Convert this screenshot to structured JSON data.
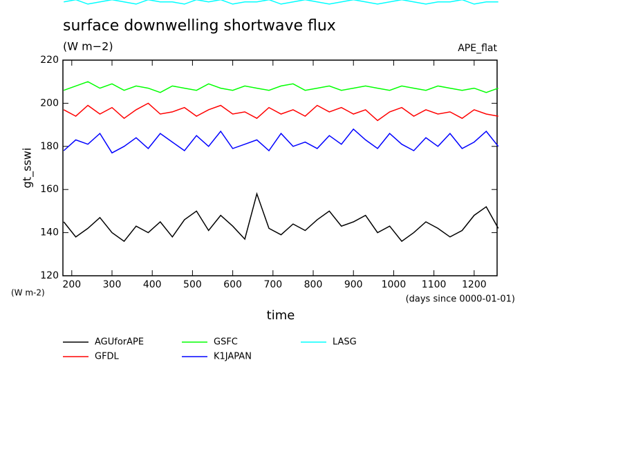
{
  "chart_data": {
    "type": "line",
    "title": "surface downwelling shortwave flux",
    "subtitle": "(W m−2)",
    "annotation": "APE_flat",
    "y_label": "gt_sswi",
    "y_unit": "(W m-2)",
    "x_unit": "(days since 0000-01-01)",
    "x_label": "time",
    "x": [
      180,
      210,
      240,
      270,
      300,
      330,
      360,
      390,
      420,
      450,
      480,
      510,
      540,
      570,
      600,
      630,
      660,
      690,
      720,
      750,
      780,
      810,
      840,
      870,
      900,
      930,
      960,
      990,
      1020,
      1050,
      1080,
      1110,
      1140,
      1170,
      1200,
      1230,
      1260
    ],
    "xlim": [
      178,
      1257
    ],
    "xticks": [
      200,
      300,
      400,
      500,
      600,
      700,
      800,
      900,
      1000,
      1100,
      1200
    ],
    "ylim": [
      120,
      220
    ],
    "yticks": [
      120,
      140,
      160,
      180,
      200,
      220
    ],
    "series": [
      {
        "name": "AGUforAPE",
        "color": "#000000",
        "values": [
          145,
          138,
          142,
          147,
          140,
          136,
          143,
          140,
          145,
          138,
          146,
          150,
          141,
          148,
          143,
          137,
          158,
          142,
          139,
          144,
          141,
          146,
          150,
          143,
          145,
          148,
          140,
          143,
          136,
          140,
          145,
          142,
          138,
          141,
          148,
          152,
          142
        ]
      },
      {
        "name": "GFDL",
        "color": "#ff0000",
        "values": [
          197,
          194,
          199,
          195,
          198,
          193,
          197,
          200,
          195,
          196,
          198,
          194,
          197,
          199,
          195,
          196,
          193,
          198,
          195,
          197,
          194,
          199,
          196,
          198,
          195,
          197,
          192,
          196,
          198,
          194,
          197,
          195,
          196,
          193,
          197,
          195,
          194
        ]
      },
      {
        "name": "GSFC",
        "color": "#00ff00",
        "values": [
          206,
          208,
          210,
          207,
          209,
          206,
          208,
          207,
          205,
          208,
          207,
          206,
          209,
          207,
          206,
          208,
          207,
          206,
          208,
          209,
          206,
          207,
          208,
          206,
          207,
          208,
          207,
          206,
          208,
          207,
          206,
          208,
          207,
          206,
          207,
          205,
          207
        ]
      },
      {
        "name": "K1JAPAN",
        "color": "#0000ff",
        "values": [
          178,
          183,
          181,
          186,
          177,
          180,
          184,
          179,
          186,
          182,
          178,
          185,
          180,
          187,
          179,
          181,
          183,
          178,
          186,
          180,
          182,
          179,
          185,
          181,
          188,
          183,
          179,
          186,
          181,
          178,
          184,
          180,
          186,
          179,
          182,
          187,
          180
        ]
      },
      {
        "name": "LASG",
        "color": "#00ffff",
        "values": [
          247,
          248,
          246,
          247,
          248,
          247,
          246,
          248,
          247,
          247,
          246,
          248,
          247,
          248,
          246,
          247,
          247,
          248,
          246,
          247,
          248,
          247,
          246,
          247,
          248,
          247,
          246,
          247,
          248,
          247,
          246,
          247,
          247,
          248,
          246,
          247,
          247
        ]
      }
    ]
  }
}
